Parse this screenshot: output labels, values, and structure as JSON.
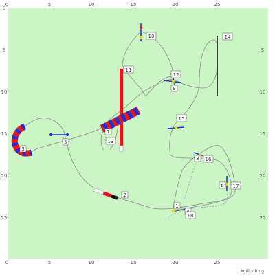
{
  "colors": {
    "field": "#ccf5c6",
    "path": "#8a8a8a",
    "bar_red": "#e8161a",
    "bar_blue": "#1d2fd8",
    "tunnel_dark": "#b0101a",
    "pole_blue": "#1d2fd8",
    "pole_yellow": "#f0d000",
    "axis_text": "#555555"
  },
  "axes": {
    "x_ticks": [
      "0",
      "5",
      "10",
      "15",
      "20",
      "25"
    ],
    "y_ticks": [
      "0",
      "5",
      "10",
      "15",
      "20",
      "25"
    ]
  },
  "obstacle_numbers": [
    "1",
    "2",
    "3",
    "4",
    "5",
    "6",
    "7",
    "8",
    "9",
    "10",
    "11",
    "12",
    "13",
    "14",
    "15",
    "16",
    "17",
    "18"
  ],
  "credit": "Agility Ring"
}
